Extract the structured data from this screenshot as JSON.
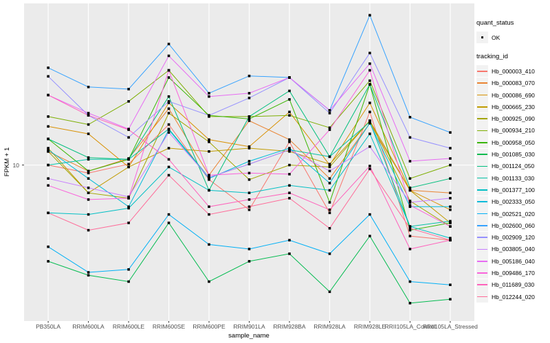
{
  "chart": {
    "xlabel": "sample_name",
    "ylabel": "FPKM + 1",
    "y_tick_label": "10",
    "panel_bg": "#EBEBEB",
    "grid_color": "#FFFFFF",
    "axis_text_color": "#4D4D4D",
    "point_color": "#000000"
  },
  "legend": {
    "quant_status_title": "quant_status",
    "quant_status_ok_label": "OK",
    "tracking_title": "tracking_id"
  },
  "chart_data": {
    "type": "line",
    "title": "",
    "xlabel": "sample_name",
    "ylabel": "FPKM + 1",
    "y_scale": "log10",
    "y_ticks": [
      10
    ],
    "ylim": [
      2.0,
      53.0
    ],
    "grid": true,
    "legend_position": "right",
    "point_legend": {
      "title": "quant_status",
      "items": [
        {
          "label": "OK",
          "shape": "square",
          "color": "#000000"
        }
      ]
    },
    "series_legend_title": "tracking_id",
    "x_categories": [
      "PB350LA",
      "RRIM600LA",
      "RRIM600LE",
      "RRIM600SE",
      "RRIM600PE",
      "RRIM901LA",
      "RRIM928BA",
      "RRIM928LA",
      "RRIM928LE",
      "RRII105LA_Control",
      "RRII105LA_Stressed"
    ],
    "series": [
      {
        "name": "Hb_000003_410",
        "color": "#F8766D",
        "values": [
          10.0,
          9.2,
          10.1,
          15.2,
          8.6,
          6.3,
          12.7,
          6.1,
          17.3,
          4.8,
          4.6
        ]
      },
      {
        "name": "Hb_000083_070",
        "color": "#EA8331",
        "values": [
          11.5,
          9.4,
          10.7,
          17.9,
          9.0,
          15.8,
          13.0,
          8.7,
          15.4,
          7.7,
          7.5
        ]
      },
      {
        "name": "Hb_000086_690",
        "color": "#D89000",
        "values": [
          14.9,
          13.8,
          9.8,
          19.0,
          13.0,
          12.1,
          17.3,
          10.0,
          19.0,
          7.7,
          6.3
        ]
      },
      {
        "name": "Hb_000665_230",
        "color": "#C09B00",
        "values": [
          11.9,
          7.5,
          9.8,
          11.9,
          11.5,
          11.9,
          11.5,
          10.1,
          15.8,
          7.7,
          5.5
        ]
      },
      {
        "name": "Hb_000925_090",
        "color": "#A3A500",
        "values": [
          11.5,
          7.5,
          7.1,
          17.1,
          12.7,
          8.6,
          10.0,
          9.8,
          15.8,
          6.9,
          5.3
        ]
      },
      {
        "name": "Hb_000934_210",
        "color": "#7CAE00",
        "values": [
          16.5,
          15.2,
          19.3,
          26.6,
          16.5,
          16.5,
          16.7,
          14.7,
          23.9,
          8.7,
          10.0
        ]
      },
      {
        "name": "Hb_000958_050",
        "color": "#39B600",
        "values": [
          13.1,
          9.4,
          10.6,
          24.7,
          16.7,
          16.1,
          19.7,
          6.8,
          23.0,
          5.1,
          5.5
        ]
      },
      {
        "name": "Hb_001085_030",
        "color": "#00BB4E",
        "values": [
          3.7,
          3.2,
          3.0,
          5.5,
          3.0,
          3.7,
          4.0,
          2.7,
          4.8,
          2.4,
          2.5
        ]
      },
      {
        "name": "Hb_001124_050",
        "color": "#00BF7D",
        "values": [
          13.1,
          10.8,
          10.6,
          20.3,
          7.7,
          16.5,
          21.5,
          10.9,
          23.0,
          7.9,
          8.7
        ]
      },
      {
        "name": "Hb_001133_030",
        "color": "#00C1A3",
        "values": [
          10.0,
          10.6,
          10.6,
          14.5,
          8.8,
          10.1,
          11.7,
          10.9,
          15.6,
          5.3,
          5.6
        ]
      },
      {
        "name": "Hb_001377_100",
        "color": "#00BFC4",
        "values": [
          6.1,
          6.0,
          6.4,
          9.8,
          7.7,
          7.5,
          8.1,
          7.7,
          13.8,
          5.3,
          4.7
        ]
      },
      {
        "name": "Hb_002333_050",
        "color": "#00BBDA",
        "values": [
          11.7,
          8.7,
          6.5,
          14.4,
          8.7,
          10.4,
          11.9,
          8.3,
          15.4,
          6.5,
          6.5
        ]
      },
      {
        "name": "Hb_002521_020",
        "color": "#00B0F6",
        "values": [
          4.3,
          3.3,
          3.4,
          6.0,
          4.4,
          4.2,
          4.6,
          4.0,
          6.0,
          3.0,
          2.9
        ]
      },
      {
        "name": "Hb_002600_060",
        "color": "#35A2FF",
        "values": [
          27.3,
          22.4,
          21.9,
          34.9,
          21.0,
          25.1,
          24.7,
          17.6,
          47.0,
          16.4,
          14.0
        ]
      },
      {
        "name": "Hb_002909_120",
        "color": "#9590FF",
        "values": [
          25.0,
          16.7,
          13.3,
          19.3,
          16.7,
          20.0,
          24.7,
          17.1,
          31.8,
          13.3,
          11.9
        ]
      },
      {
        "name": "Hb_003805_040",
        "color": "#C77CFF",
        "values": [
          8.7,
          7.9,
          7.2,
          14.0,
          8.8,
          10.1,
          11.7,
          9.4,
          12.1,
          6.8,
          7.1
        ]
      },
      {
        "name": "Hb_005186_040",
        "color": "#E76BF3",
        "values": [
          20.6,
          17.1,
          14.5,
          30.9,
          20.3,
          21.0,
          24.7,
          17.6,
          28.5,
          10.4,
          10.7
        ]
      },
      {
        "name": "Hb_009486_170",
        "color": "#FA62DB",
        "values": [
          8.1,
          7.0,
          7.1,
          26.6,
          9.0,
          9.2,
          9.1,
          14.4,
          26.6,
          6.6,
          5.3
        ]
      },
      {
        "name": "Hb_011689_030",
        "color": "#FF62BC",
        "values": [
          20.6,
          16.7,
          14.4,
          10.6,
          6.5,
          7.0,
          7.5,
          6.3,
          9.9,
          4.2,
          4.6
        ]
      },
      {
        "name": "Hb_012244_020",
        "color": "#FF6A98",
        "values": [
          6.1,
          5.1,
          5.5,
          9.0,
          6.0,
          6.5,
          7.1,
          5.2,
          9.6,
          5.2,
          4.6
        ]
      }
    ]
  }
}
